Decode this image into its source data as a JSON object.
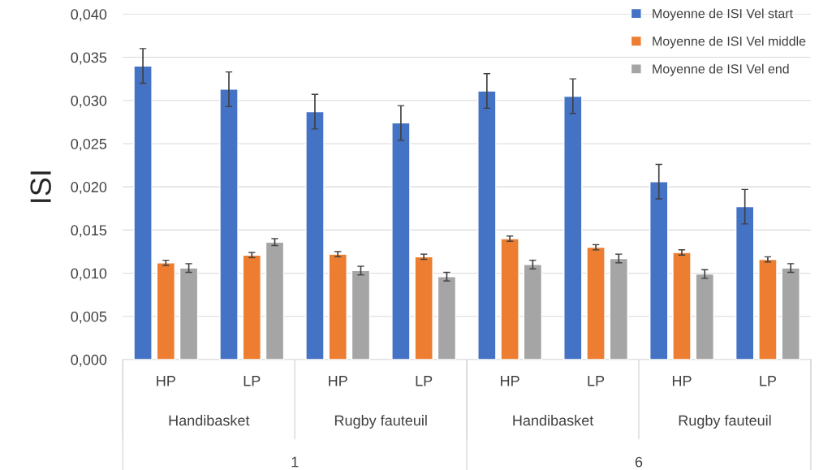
{
  "chart_data": {
    "type": "bar",
    "ylabel": "ISI",
    "categories": [
      "HP",
      "LP",
      "HP",
      "LP",
      "HP",
      "LP",
      "HP",
      "LP"
    ],
    "annotations": [
      "Handibasket",
      "Rugby fauteuil",
      "Handibasket",
      "Rugby fauteuil",
      "1",
      "6"
    ],
    "series": [
      {
        "name": "Moyenne de ISI Vel start",
        "color": "#4472c4",
        "values": [
          0.034,
          0.0313,
          0.0287,
          0.0274,
          0.0311,
          0.0305,
          0.0206,
          0.0177
        ],
        "errors": [
          0.002,
          0.002,
          0.002,
          0.002,
          0.002,
          0.002,
          0.002,
          0.002
        ]
      },
      {
        "name": "Moyenne de ISI Vel middle",
        "color": "#ed7d31",
        "values": [
          0.0112,
          0.0121,
          0.0122,
          0.0119,
          0.014,
          0.013,
          0.0124,
          0.0116
        ],
        "errors": [
          0.0003,
          0.0003,
          0.0003,
          0.0003,
          0.0003,
          0.0003,
          0.0003,
          0.0003
        ]
      },
      {
        "name": "Moyenne de ISI Vel end",
        "color": "#a5a5a5",
        "values": [
          0.0106,
          0.0136,
          0.0103,
          0.0096,
          0.011,
          0.0117,
          0.0099,
          0.0106
        ],
        "errors": [
          0.0005,
          0.0004,
          0.0005,
          0.0005,
          0.0005,
          0.0005,
          0.0005,
          0.0005
        ]
      }
    ],
    "ylim": [
      0,
      0.04
    ],
    "yticks": [
      {
        "value": 0,
        "label": "0,000"
      },
      {
        "value": 0.005,
        "label": "0,005"
      },
      {
        "value": 0.01,
        "label": "0,010"
      },
      {
        "value": 0.015,
        "label": "0,015"
      },
      {
        "value": 0.02,
        "label": "0,020"
      },
      {
        "value": 0.025,
        "label": "0,025"
      },
      {
        "value": 0.03,
        "label": "0,030"
      },
      {
        "value": 0.035,
        "label": "0,035"
      },
      {
        "value": 0.04,
        "label": "0,040"
      }
    ],
    "grid": "y",
    "legend": "top right"
  }
}
